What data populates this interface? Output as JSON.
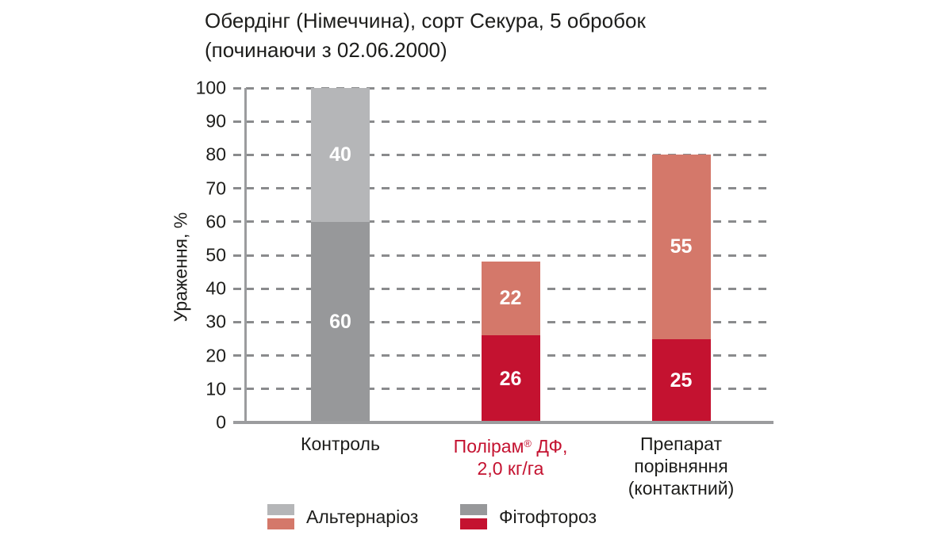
{
  "title": {
    "line1": "Обердінг (Німеччина), сорт Секура, 5 обробок",
    "line2": "(починаючи з 02.06.2000)"
  },
  "colors": {
    "alternaria_gray": "#b5b6b8",
    "phytophthora_gray": "#97989a",
    "alternaria_red": "#d4786a",
    "phytophthora_red": "#c41230",
    "treated_label_red": "#c41230",
    "axis_gray": "#9b9c9e",
    "grid_gray": "#8a8b8d",
    "text_dark": "#1d1d1b",
    "bar_value_text": "#ffffff"
  },
  "chart_data": {
    "type": "bar",
    "stacked": true,
    "title": "Обердінг (Німеччина), сорт Секура, 5 обробок (починаючи з 02.06.2000)",
    "xlabel": "",
    "ylabel": "Ураження, %",
    "ylim": [
      0,
      100
    ],
    "ytick_step": 10,
    "grid": "horizontal dashed",
    "legend_position": "bottom",
    "categories": [
      "Контроль",
      "Полірам® ДФ, 2,0 кг/га",
      "Препарат порівняння (контактний)"
    ],
    "series": [
      {
        "name": "Фітофтороз",
        "values": [
          60,
          26,
          25
        ]
      },
      {
        "name": "Альтернаріоз",
        "values": [
          40,
          22,
          55
        ]
      }
    ],
    "bars": [
      {
        "label_lines": [
          "Контроль"
        ],
        "label_color": "#1d1d1b",
        "segments": [
          {
            "key": "phytophthora",
            "series": "Фітофтороз",
            "value": 60,
            "color": "#97989a"
          },
          {
            "key": "alternaria",
            "series": "Альтернаріоз",
            "value": 40,
            "color": "#b5b6b8"
          }
        ]
      },
      {
        "label_lines": [
          "Полірам® ДФ,",
          "2,0 кг/га"
        ],
        "label_color": "#c41230",
        "segments": [
          {
            "key": "phytophthora",
            "series": "Фітофтороз",
            "value": 26,
            "color": "#c41230"
          },
          {
            "key": "alternaria",
            "series": "Альтернаріоз",
            "value": 22,
            "color": "#d4786a"
          }
        ]
      },
      {
        "label_lines": [
          "Препарат",
          "порівняння",
          "(контактний)"
        ],
        "label_color": "#1d1d1b",
        "segments": [
          {
            "key": "phytophthora",
            "series": "Фітофтороз",
            "value": 25,
            "color": "#c41230"
          },
          {
            "key": "alternaria",
            "series": "Альтернаріоз",
            "value": 55,
            "color": "#d4786a"
          }
        ]
      }
    ],
    "legend": [
      {
        "label": "Альтернаріоз",
        "swatches": [
          "#b5b6b8",
          "#d4786a"
        ]
      },
      {
        "label": "Фітофтороз",
        "swatches": [
          "#97989a",
          "#c41230"
        ]
      }
    ]
  }
}
